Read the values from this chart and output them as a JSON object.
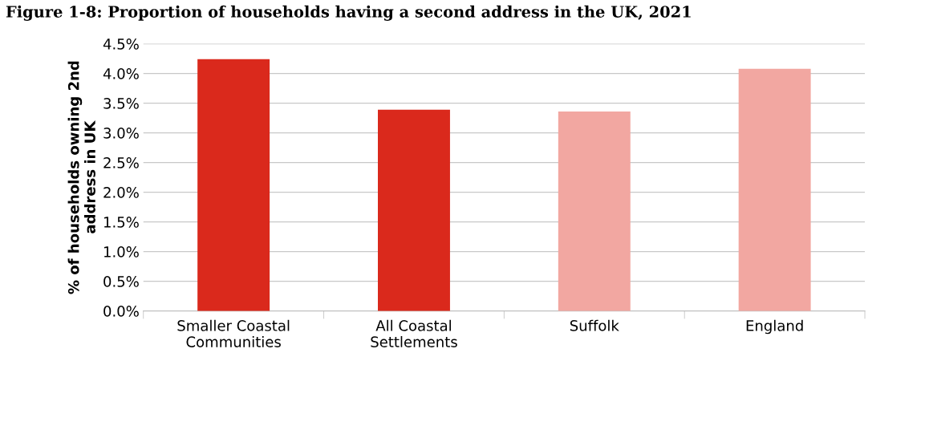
{
  "chart_data": {
    "type": "bar",
    "title": "Figure 1-8: Proportion of households having a second address in the UK, 2021",
    "categories": [
      "Smaller Coastal\nCommunities",
      "All Coastal\nSettlements",
      "Suffolk",
      "England"
    ],
    "values": [
      4.24,
      3.39,
      3.36,
      4.08
    ],
    "colors": [
      "#da291c",
      "#da291c",
      "#f2a7a1",
      "#f2a7a1"
    ],
    "ylabel": "% of households owning 2nd\naddress in UK",
    "ylim": [
      0,
      4.5
    ],
    "yticks": [
      {
        "value": 0,
        "label": "0.0%"
      },
      {
        "value": 0.5,
        "label": "0.5%"
      },
      {
        "value": 1,
        "label": "1.0%"
      },
      {
        "value": 1.5,
        "label": "1.5%"
      },
      {
        "value": 2,
        "label": "2.0%"
      },
      {
        "value": 2.5,
        "label": "2.5%"
      },
      {
        "value": 3,
        "label": "3.0%"
      },
      {
        "value": 3.5,
        "label": "3.5%"
      },
      {
        "value": 4,
        "label": "4.0%"
      },
      {
        "value": 4.5,
        "label": "4.5%"
      }
    ],
    "grid": "y",
    "legend": false
  }
}
